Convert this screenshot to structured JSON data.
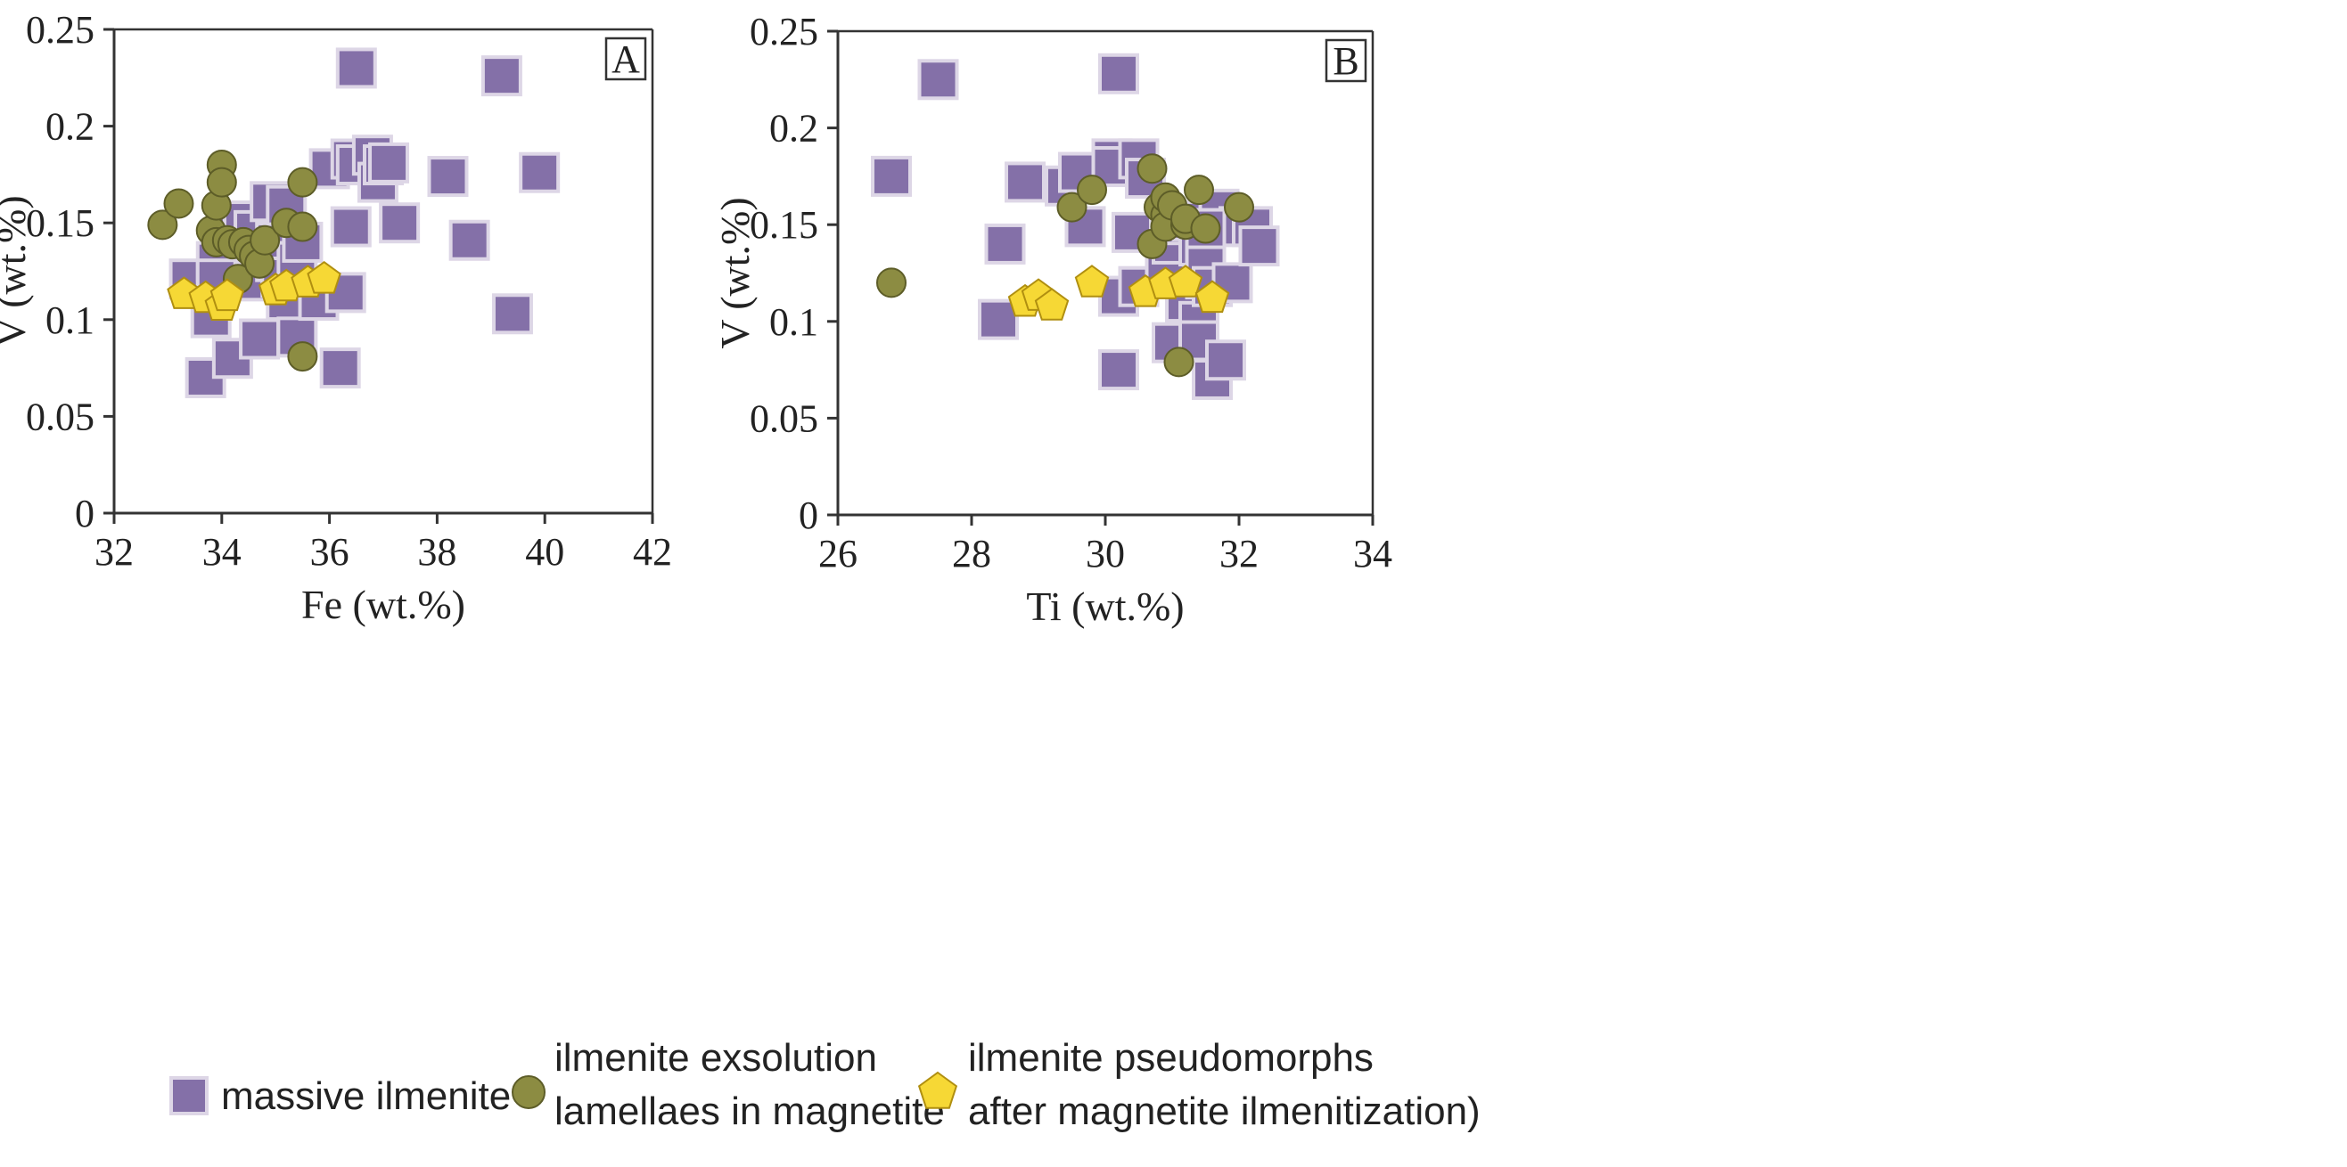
{
  "chart_data": [
    {
      "type": "scatter",
      "panel_label": "A",
      "xlabel": "Fe (wt.%)",
      "ylabel": "V (wt.%)",
      "xlim": [
        32,
        42
      ],
      "ylim": [
        0,
        0.25
      ],
      "xticks": [
        "32",
        "34",
        "36",
        "38",
        "40",
        "42"
      ],
      "yticks": [
        "0",
        "0.05",
        "0.1",
        "0.15",
        "0.2",
        "0.25"
      ],
      "grid": false,
      "series": [
        {
          "name": "massive ilmenite",
          "marker": "square",
          "color": "#8470a8",
          "points": [
            [
              33.4,
              0.121
            ],
            [
              33.8,
              0.101
            ],
            [
              33.7,
              0.07
            ],
            [
              34.2,
              0.08
            ],
            [
              33.9,
              0.13
            ],
            [
              33.9,
              0.121
            ],
            [
              34.3,
              0.148
            ],
            [
              34.4,
              0.151
            ],
            [
              34.6,
              0.146
            ],
            [
              34.6,
              0.12
            ],
            [
              34.7,
              0.09
            ],
            [
              34.9,
              0.161
            ],
            [
              35.0,
              0.14
            ],
            [
              35.0,
              0.13
            ],
            [
              35.1,
              0.122
            ],
            [
              35.2,
              0.11
            ],
            [
              35.2,
              0.159
            ],
            [
              35.4,
              0.13
            ],
            [
              35.4,
              0.091
            ],
            [
              35.5,
              0.14
            ],
            [
              35.8,
              0.11
            ],
            [
              36.0,
              0.178
            ],
            [
              36.2,
              0.075
            ],
            [
              36.3,
              0.114
            ],
            [
              36.4,
              0.148
            ],
            [
              36.4,
              0.183
            ],
            [
              36.5,
              0.18
            ],
            [
              36.5,
              0.23
            ],
            [
              36.8,
              0.185
            ],
            [
              36.9,
              0.171
            ],
            [
              37.0,
              0.18
            ],
            [
              37.1,
              0.181
            ],
            [
              37.3,
              0.15
            ],
            [
              38.2,
              0.174
            ],
            [
              38.6,
              0.141
            ],
            [
              39.2,
              0.226
            ],
            [
              39.4,
              0.103
            ],
            [
              39.9,
              0.176
            ]
          ]
        },
        {
          "name": "ilmenite exsolution lamellaes in magnetite",
          "marker": "circle",
          "color": "#8c8c42",
          "points": [
            [
              32.9,
              0.149
            ],
            [
              33.2,
              0.16
            ],
            [
              33.8,
              0.146
            ],
            [
              33.9,
              0.14
            ],
            [
              33.9,
              0.159
            ],
            [
              34.0,
              0.18
            ],
            [
              34.0,
              0.171
            ],
            [
              34.1,
              0.141
            ],
            [
              34.2,
              0.139
            ],
            [
              34.3,
              0.121
            ],
            [
              34.4,
              0.14
            ],
            [
              34.5,
              0.136
            ],
            [
              34.6,
              0.133
            ],
            [
              34.7,
              0.129
            ],
            [
              34.8,
              0.141
            ],
            [
              35.2,
              0.15
            ],
            [
              35.5,
              0.171
            ],
            [
              35.5,
              0.148
            ],
            [
              35.5,
              0.081
            ]
          ]
        },
        {
          "name": "ilmenite pseudomorphs after magnetite ilmenitization)",
          "marker": "pentagon",
          "color": "#f6d835",
          "points": [
            [
              33.3,
              0.113
            ],
            [
              33.7,
              0.111
            ],
            [
              34.0,
              0.107
            ],
            [
              34.1,
              0.112
            ],
            [
              35.0,
              0.115
            ],
            [
              35.2,
              0.117
            ],
            [
              35.6,
              0.119
            ],
            [
              35.9,
              0.121
            ]
          ]
        }
      ]
    },
    {
      "type": "scatter",
      "panel_label": "B",
      "xlabel": "Ti (wt.%)",
      "ylabel": "V (wt.%)",
      "xlim": [
        26,
        34
      ],
      "ylim": [
        0,
        0.25
      ],
      "xticks": [
        "26",
        "28",
        "30",
        "32",
        "34"
      ],
      "yticks": [
        "0",
        "0.05",
        "0.1",
        "0.15",
        "0.2",
        "0.25"
      ],
      "grid": false,
      "series": [
        {
          "name": "massive ilmenite",
          "marker": "square",
          "color": "#8470a8",
          "points": [
            [
              26.8,
              0.175
            ],
            [
              27.5,
              0.225
            ],
            [
              28.4,
              0.101
            ],
            [
              28.5,
              0.14
            ],
            [
              28.8,
              0.172
            ],
            [
              29.4,
              0.17
            ],
            [
              29.6,
              0.177
            ],
            [
              29.7,
              0.149
            ],
            [
              30.1,
              0.184
            ],
            [
              30.1,
              0.18
            ],
            [
              30.2,
              0.113
            ],
            [
              30.2,
              0.075
            ],
            [
              30.2,
              0.228
            ],
            [
              30.5,
              0.184
            ],
            [
              30.5,
              0.118
            ],
            [
              30.4,
              0.146
            ],
            [
              30.6,
              0.174
            ],
            [
              30.9,
              0.13
            ],
            [
              31.0,
              0.14
            ],
            [
              31.0,
              0.089
            ],
            [
              31.1,
              0.15
            ],
            [
              31.2,
              0.11
            ],
            [
              31.3,
              0.152
            ],
            [
              31.4,
              0.1
            ],
            [
              31.4,
              0.09
            ],
            [
              31.4,
              0.139
            ],
            [
              31.5,
              0.14
            ],
            [
              31.5,
              0.122
            ],
            [
              31.5,
              0.13
            ],
            [
              31.6,
              0.118
            ],
            [
              31.6,
              0.07
            ],
            [
              31.7,
              0.158
            ],
            [
              31.8,
              0.08
            ],
            [
              31.9,
              0.12
            ],
            [
              32.0,
              0.149
            ],
            [
              32.2,
              0.149
            ],
            [
              32.3,
              0.139
            ],
            [
              31.5,
              0.148
            ]
          ]
        },
        {
          "name": "ilmenite exsolution lamellaes in magnetite",
          "marker": "circle",
          "color": "#8c8c42",
          "points": [
            [
              26.8,
              0.12
            ],
            [
              29.5,
              0.159
            ],
            [
              29.8,
              0.168
            ],
            [
              30.7,
              0.179
            ],
            [
              30.7,
              0.14
            ],
            [
              30.8,
              0.159
            ],
            [
              30.9,
              0.155
            ],
            [
              30.9,
              0.164
            ],
            [
              30.9,
              0.149
            ],
            [
              31.0,
              0.16
            ],
            [
              31.1,
              0.079
            ],
            [
              31.2,
              0.15
            ],
            [
              31.2,
              0.153
            ],
            [
              31.4,
              0.168
            ],
            [
              31.5,
              0.148
            ],
            [
              32.0,
              0.159
            ]
          ]
        },
        {
          "name": "ilmenite pseudomorphs after magnetite ilmenitization)",
          "marker": "pentagon",
          "color": "#f6d835",
          "points": [
            [
              28.8,
              0.11
            ],
            [
              29.0,
              0.113
            ],
            [
              29.2,
              0.108
            ],
            [
              29.8,
              0.12
            ],
            [
              30.6,
              0.115
            ],
            [
              30.9,
              0.119
            ],
            [
              31.2,
              0.12
            ],
            [
              31.6,
              0.112
            ]
          ]
        }
      ]
    }
  ],
  "legend": {
    "placement": "bottom",
    "items": [
      {
        "marker": "square",
        "lines": [
          "massive ilmenite"
        ]
      },
      {
        "marker": "circle",
        "lines": [
          "ilmenite exsolution",
          "lamellaes in magnetite"
        ]
      },
      {
        "marker": "pentagon",
        "lines": [
          "ilmenite pseudomorphs",
          "after magnetite ilmenitization)"
        ]
      }
    ]
  }
}
